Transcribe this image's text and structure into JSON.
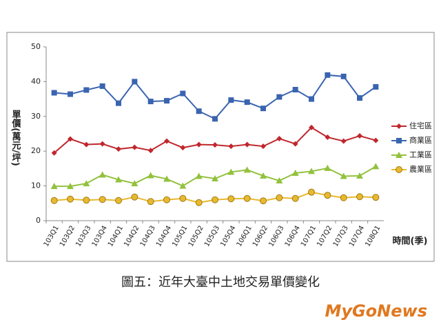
{
  "chart_data": {
    "type": "line",
    "y_label": "單價(萬元/坪)",
    "x_label": "時間(季)",
    "caption": "圖五：近年大臺中土地交易單價變化",
    "categories": [
      "103Q1",
      "103Q2",
      "103Q3",
      "103Q4",
      "104Q1",
      "104Q2",
      "104Q3",
      "104Q4",
      "105Q1",
      "105Q2",
      "105Q3",
      "105Q4",
      "106Q1",
      "106Q2",
      "106Q3",
      "106Q4",
      "107Q1",
      "107Q2",
      "107Q3",
      "107Q4",
      "108Q1"
    ],
    "series": [
      {
        "name": "住宅區",
        "color": "#c0272d",
        "marker": "diamond",
        "values": [
          19.5,
          23.5,
          21.9,
          22.1,
          20.6,
          21.1,
          20.2,
          22.9,
          21.0,
          21.9,
          21.8,
          21.4,
          21.9,
          21.4,
          23.6,
          22.1,
          26.8,
          24.0,
          22.9,
          24.4,
          23.1
        ]
      },
      {
        "name": "商業區",
        "color": "#3a64b0",
        "marker": "square",
        "values": [
          36.8,
          36.4,
          37.6,
          38.7,
          33.8,
          40.0,
          34.3,
          34.5,
          36.6,
          31.5,
          29.3,
          34.7,
          34.1,
          32.3,
          35.6,
          37.7,
          35.0,
          41.9,
          41.5,
          35.3,
          38.5
        ]
      },
      {
        "name": "工業區",
        "color": "#92c13d",
        "marker": "triangle",
        "values": [
          9.9,
          9.9,
          10.7,
          13.2,
          11.8,
          10.7,
          13.0,
          12.0,
          10.0,
          12.8,
          12.1,
          14.0,
          14.6,
          12.9,
          11.5,
          13.7,
          14.2,
          15.1,
          12.8,
          12.9,
          15.6
        ]
      },
      {
        "name": "農業區",
        "color": "#e8b830",
        "marker": "circle",
        "values": [
          5.8,
          6.2,
          5.9,
          6.1,
          5.8,
          6.8,
          5.5,
          6.0,
          6.4,
          5.2,
          6.0,
          6.3,
          6.4,
          5.7,
          6.6,
          6.4,
          8.2,
          7.3,
          6.6,
          6.9,
          6.7
        ]
      }
    ],
    "ylim": [
      0,
      50
    ],
    "yticks": [
      0,
      10,
      20,
      30,
      40,
      50
    ],
    "grid": false,
    "legend": "right"
  },
  "watermark": "MyGoNews"
}
